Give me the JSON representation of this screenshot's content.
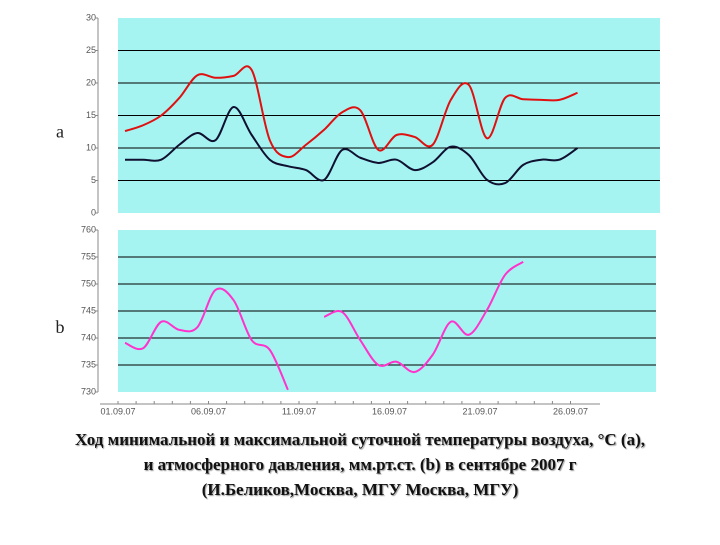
{
  "chart_data": [
    {
      "type": "line",
      "label": "a",
      "ylim": [
        0,
        30
      ],
      "yticks": [
        0,
        5,
        10,
        15,
        20,
        25,
        30
      ],
      "grid": true,
      "series": [
        {
          "color": "#e01010",
          "values": [
            12.6,
            13.5,
            15,
            17.7,
            21.2,
            20.8,
            21.1,
            22,
            11.2,
            8.6,
            10.5,
            12.8,
            15.5,
            15.8,
            9.7,
            12,
            11.7,
            10.5,
            17.4,
            19.7,
            11.5,
            17.7,
            17.5,
            17.4,
            17.4,
            18.5
          ]
        },
        {
          "color": "#101030",
          "values": [
            8.2,
            8.2,
            8.2,
            10.5,
            12.3,
            11.2,
            16.3,
            12,
            8.2,
            7.2,
            6.6,
            5.1,
            9.7,
            8.5,
            7.7,
            8.2,
            6.6,
            7.8,
            10.2,
            8.9,
            5.1,
            4.6,
            7.4,
            8.2,
            8.2,
            10
          ]
        }
      ]
    },
    {
      "type": "line",
      "label": "b",
      "ylim": [
        730,
        760
      ],
      "yticks": [
        730,
        735,
        740,
        745,
        750,
        755,
        760
      ],
      "grid": true,
      "categories": [
        "01.09.07",
        null,
        null,
        null,
        null,
        "06.09.07",
        null,
        null,
        null,
        null,
        "11.09.07",
        null,
        null,
        null,
        null,
        "16.09.07",
        null,
        null,
        null,
        null,
        "21.09.07",
        null,
        null,
        null,
        null,
        "26.09.07"
      ],
      "series": [
        {
          "color": "#ff33cc",
          "values": [
            739.1,
            738.1,
            743,
            741.5,
            742,
            748.9,
            747,
            739.6,
            737.8,
            730.4,
            null,
            743.9,
            744.8,
            739.6,
            735,
            735.6,
            733.7,
            736.9,
            743,
            740.6,
            745.2,
            751.7,
            754.1,
            null,
            null,
            null
          ]
        }
      ]
    }
  ],
  "caption": [
    "Ход минимальной и максимальной суточной температуры воздуха, °С (a),",
    "и атмосферного давления, мм.рт.ст. (b) в сентябре 2007 г",
    "(И.Беликов,Москва, МГУ Москва, МГУ)"
  ]
}
